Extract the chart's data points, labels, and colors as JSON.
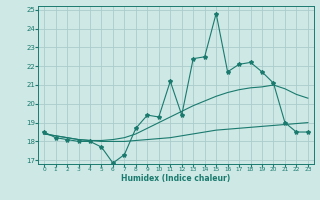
{
  "title": "",
  "xlabel": "Humidex (Indice chaleur)",
  "xlim": [
    -0.5,
    23.5
  ],
  "ylim": [
    16.8,
    25.2
  ],
  "yticks": [
    17,
    18,
    19,
    20,
    21,
    22,
    23,
    24,
    25
  ],
  "xticks": [
    0,
    1,
    2,
    3,
    4,
    5,
    6,
    7,
    8,
    9,
    10,
    11,
    12,
    13,
    14,
    15,
    16,
    17,
    18,
    19,
    20,
    21,
    22,
    23
  ],
  "bg_color": "#cde8e5",
  "line_color": "#1a7a6e",
  "grid_color": "#aaccca",
  "main_line": [
    18.5,
    18.2,
    18.1,
    18.0,
    18.0,
    17.7,
    16.85,
    17.3,
    18.7,
    19.4,
    19.3,
    21.2,
    19.4,
    22.4,
    22.5,
    24.8,
    21.7,
    22.1,
    22.2,
    21.7,
    21.1,
    19.0,
    18.5,
    18.5
  ],
  "trend_line1": [
    18.4,
    18.3,
    18.2,
    18.1,
    18.05,
    18.0,
    18.0,
    18.0,
    18.05,
    18.1,
    18.15,
    18.2,
    18.3,
    18.4,
    18.5,
    18.6,
    18.65,
    18.7,
    18.75,
    18.8,
    18.85,
    18.9,
    18.95,
    19.0
  ],
  "trend_line2": [
    18.4,
    18.3,
    18.2,
    18.1,
    18.05,
    18.05,
    18.1,
    18.2,
    18.4,
    18.7,
    19.0,
    19.3,
    19.6,
    19.9,
    20.15,
    20.4,
    20.6,
    20.75,
    20.85,
    20.9,
    21.0,
    20.8,
    20.5,
    20.3
  ]
}
